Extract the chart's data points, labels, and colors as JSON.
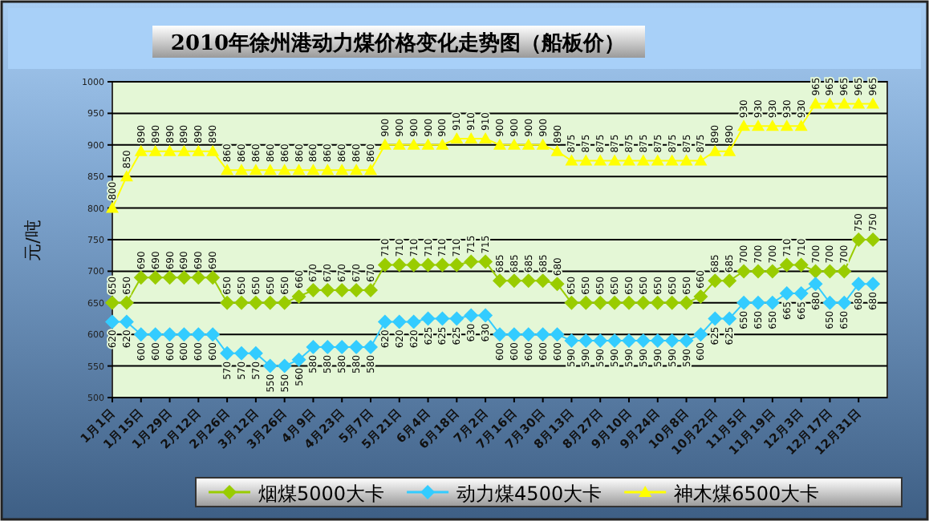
{
  "chart_data": {
    "type": "line",
    "title": "2010年徐州港动力煤价格变化走势图（船板价）",
    "ylabel": "元/吨",
    "categories": [
      "1月1日",
      null,
      "1月15日",
      null,
      "1月29日",
      null,
      "2月12日",
      null,
      "2月26日",
      null,
      "3月12日",
      null,
      "3月26日",
      null,
      "4月9日",
      null,
      "4月23日",
      null,
      "5月7日",
      null,
      "5月21日",
      null,
      "6月4日",
      null,
      "6月18日",
      null,
      "7月2日",
      null,
      "7月16日",
      null,
      "7月30日",
      null,
      "8月13日",
      null,
      "8月27日",
      null,
      "9月10日",
      null,
      "9月24日",
      null,
      "10月8日",
      null,
      "10月22日",
      null,
      "11月5日",
      null,
      "11月19日",
      null,
      "12月3日",
      null,
      "12月17日",
      null,
      "12月31日",
      null
    ],
    "series": [
      {
        "name": "烟煤5000大卡",
        "color": "#99cc00",
        "marker": "diamond",
        "values": [
          650,
          650,
          690,
          690,
          690,
          690,
          690,
          690,
          650,
          650,
          650,
          650,
          650,
          660,
          670,
          670,
          670,
          670,
          670,
          710,
          710,
          710,
          710,
          710,
          710,
          715,
          715,
          685,
          685,
          685,
          685,
          680,
          650,
          650,
          650,
          650,
          650,
          650,
          650,
          650,
          650,
          660,
          685,
          685,
          700,
          700,
          700,
          710,
          710,
          700,
          700,
          700,
          750,
          750
        ]
      },
      {
        "name": "动力煤4500大卡",
        "color": "#33ccff",
        "marker": "diamond",
        "values": [
          620,
          620,
          600,
          600,
          600,
          600,
          600,
          600,
          570,
          570,
          570,
          550,
          550,
          560,
          580,
          580,
          580,
          580,
          580,
          620,
          620,
          620,
          625,
          625,
          625,
          630,
          630,
          600,
          600,
          600,
          600,
          600,
          590,
          590,
          590,
          590,
          590,
          590,
          590,
          590,
          590,
          600,
          625,
          625,
          650,
          650,
          650,
          665,
          665,
          680,
          650,
          650,
          680,
          680
        ]
      },
      {
        "name": "神木煤6500大卡",
        "color": "#ffff00",
        "marker": "triangle",
        "values": [
          800,
          850,
          890,
          890,
          890,
          890,
          890,
          890,
          860,
          860,
          860,
          860,
          860,
          860,
          860,
          860,
          860,
          860,
          860,
          900,
          900,
          900,
          900,
          900,
          910,
          910,
          910,
          900,
          900,
          900,
          900,
          890,
          875,
          875,
          875,
          875,
          875,
          875,
          875,
          875,
          875,
          875,
          890,
          890,
          930,
          930,
          930,
          930,
          930,
          965,
          965,
          965,
          965,
          965
        ]
      }
    ],
    "ylim": [
      500,
      1000
    ],
    "yticks": [
      500,
      550,
      600,
      650,
      700,
      750,
      800,
      850,
      900,
      950,
      1000
    ],
    "grid": "y",
    "legend": "bottom",
    "data_labels": true
  }
}
